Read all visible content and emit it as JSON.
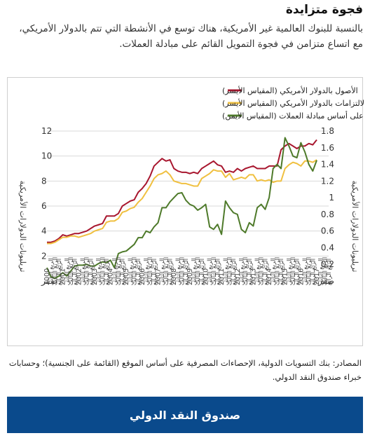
{
  "header": {
    "title": "فجوة متزايدة",
    "subtitle": "بالنسبة للبنوك العالمية غير الأمريكية، هناك توسع في الأنشطة التي تتم بالدولار الأمريكي، مع اتساع متزامن في فجوة التمويل القائم على مبادلة العملات."
  },
  "footer": {
    "source": "المصادر: بنك التسويات الدولية، الإحصاءات المصرفية على أساس الموقع (القائمة على الجنسية)؛ وحسابات خبراء صندوق النقد الدولي.",
    "button_label": "صندوق النقد الدولي"
  },
  "chart_data": {
    "type": "line",
    "left_axis": {
      "label": "تريليونات الدولارات الأمريكية",
      "range": [
        0,
        12
      ],
      "ticks": [
        0,
        2,
        4,
        6,
        8,
        10,
        12
      ],
      "tick_labels": [
        "صفر",
        "2",
        "4",
        "6",
        "8",
        "10",
        "12"
      ]
    },
    "right_axis": {
      "label": "تريليونات الدولارات الأمريكية",
      "range": [
        0,
        1.8
      ],
      "ticks": [
        0,
        0.2,
        0.4,
        0.6,
        0.8,
        1,
        1.2,
        1.4,
        1.6,
        1.8
      ],
      "tick_labels": [
        "صفر",
        "0.2",
        "0.4",
        "0.6",
        "0.8",
        "1",
        "1.2",
        "1.4",
        "1.6",
        "1.8"
      ]
    },
    "x_axis": {
      "start_year": 2000,
      "years": [
        "2000",
        "2001",
        "2002",
        "2003",
        "2004",
        "2005",
        "2006",
        "2007",
        "2008",
        "2009",
        "2010",
        "2011",
        "2012",
        "2013",
        "2014",
        "2015",
        "2016",
        "2017"
      ],
      "quarter_labels": [
        "الربع الأول",
        "الربع الثاني",
        "الربع الثالث",
        "الربع الرابع"
      ]
    },
    "legend_position": "top-right",
    "grid": "horizontal",
    "series": [
      {
        "name": "الأصول بالدولار الأمريكي (المقياس الأيسر)",
        "axis": "left",
        "color": "#a8162e",
        "values": [
          3.1,
          3.1,
          3.2,
          3.4,
          3.7,
          3.6,
          3.7,
          3.8,
          3.8,
          3.9,
          4.0,
          4.2,
          4.4,
          4.5,
          4.6,
          5.2,
          5.2,
          5.2,
          5.4,
          6.0,
          6.2,
          6.4,
          6.5,
          7.1,
          7.4,
          7.8,
          8.4,
          9.2,
          9.5,
          9.8,
          9.6,
          9.7,
          9.0,
          8.8,
          8.7,
          8.7,
          8.6,
          8.7,
          8.6,
          9.0,
          9.2,
          9.4,
          9.6,
          9.3,
          9.2,
          8.7,
          8.8,
          8.7,
          9.0,
          8.8,
          9.0,
          9.1,
          9.2,
          9.0,
          9.0,
          9.0,
          9.2,
          9.2,
          9.2,
          10.5,
          10.8,
          11.0,
          10.8,
          10.6,
          10.8,
          10.8,
          11.0,
          10.9,
          11.3
        ]
      },
      {
        "name": "الالتزامات بالدولار الأمريكي (المقياس الأيسر)",
        "axis": "left",
        "color": "#f0c040",
        "values": [
          3.0,
          3.0,
          3.1,
          3.3,
          3.5,
          3.5,
          3.6,
          3.6,
          3.5,
          3.6,
          3.7,
          3.8,
          4.0,
          4.1,
          4.2,
          4.7,
          4.8,
          4.8,
          5.0,
          5.5,
          5.6,
          5.8,
          5.9,
          6.3,
          6.6,
          7.1,
          7.6,
          8.2,
          8.5,
          8.6,
          8.8,
          8.5,
          8.0,
          7.9,
          7.8,
          7.8,
          7.7,
          7.6,
          7.6,
          8.2,
          8.4,
          8.6,
          8.9,
          8.8,
          8.8,
          8.3,
          8.6,
          8.1,
          8.2,
          8.3,
          8.2,
          8.5,
          8.5,
          8.0,
          8.1,
          8.0,
          8.1,
          7.9,
          8.0,
          8.0,
          9.0,
          9.3,
          9.5,
          9.4,
          9.2,
          9.6,
          9.6,
          9.5,
          9.7
        ]
      },
      {
        "name": "فجوة التمويل على أساس مبادلة العملات (المقياس الأيمن)",
        "axis": "right",
        "color": "#4e7a2a",
        "values": [
          0.16,
          0.05,
          0.03,
          0.06,
          0.1,
          0.06,
          0.12,
          0.18,
          0.19,
          0.19,
          0.2,
          0.18,
          0.18,
          0.21,
          0.23,
          0.22,
          0.25,
          0.16,
          0.33,
          0.35,
          0.36,
          0.4,
          0.44,
          0.52,
          0.52,
          0.6,
          0.58,
          0.65,
          0.7,
          0.88,
          0.88,
          0.95,
          1.0,
          1.05,
          1.06,
          0.97,
          0.92,
          0.9,
          0.85,
          0.88,
          0.92,
          0.65,
          0.62,
          0.68,
          0.56,
          0.96,
          0.88,
          0.82,
          0.8,
          0.62,
          0.58,
          0.7,
          0.66,
          0.88,
          0.92,
          0.86,
          1.0,
          1.35,
          1.4,
          1.35,
          1.72,
          1.62,
          1.5,
          1.48,
          1.66,
          1.55,
          1.4,
          1.32,
          1.45
        ]
      }
    ]
  }
}
